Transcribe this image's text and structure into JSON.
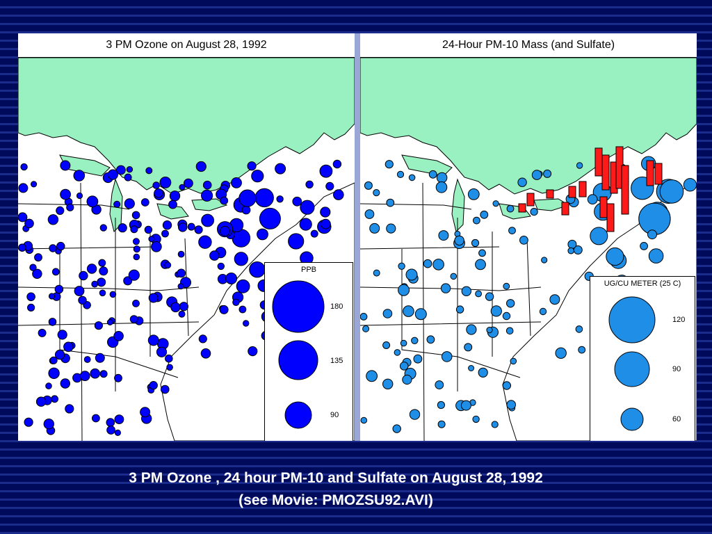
{
  "left_panel": {
    "title": "3 PM Ozone on August 28, 1992",
    "legend": {
      "title": "PPB",
      "values": [
        "180",
        "135",
        "90"
      ]
    },
    "marker_color": "#0000ff"
  },
  "right_panel": {
    "title": "24-Hour PM-10 Mass (and Sulfate)",
    "legend": {
      "title": "UG/CU METER (25 C)",
      "values": [
        "120",
        "90",
        "60"
      ]
    },
    "marker_color": "#1e8ee6",
    "sulfate_bar_color": "#ff1a1a"
  },
  "map_colors": {
    "land": "#ffffff",
    "water": "#99f0c0",
    "borders": "#000000"
  },
  "caption": {
    "line1": "3 PM Ozone , 24 hour PM-10 and Sulfate on August 28, 1992",
    "line2": "(see Movie: PMOZSU92.AVI)"
  }
}
